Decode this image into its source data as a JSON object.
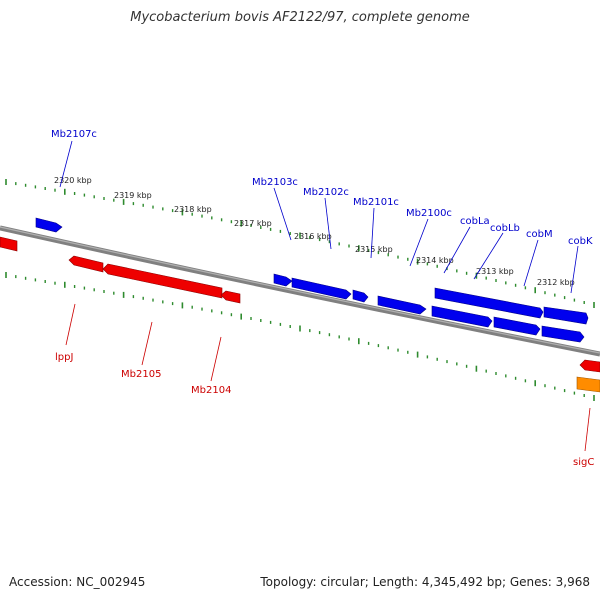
{
  "title": "Mycobacterium bovis AF2122/97, complete genome",
  "footer": {
    "accession": "Accession: NC_002945",
    "stats": "Topology: circular; Length: 4,345,492 bp; Genes: 3,968"
  },
  "colors": {
    "backbone": "#808080",
    "ticks": "#2e8b2e",
    "forward_strand": "#0000ee",
    "reverse_strand": "#ee0000",
    "rna": "#ff8c00",
    "label_blue": "#0000cc",
    "label_red": "#cc0000"
  },
  "scale_labels": [
    "2320 kbp",
    "2319 kbp",
    "2318 kbp",
    "2317 kbp",
    "2316 kbp",
    "2315 kbp",
    "2314 kbp",
    "2313 kbp",
    "2312 kbp"
  ],
  "upper_genes": [
    "Mb2107c",
    "Mb2103c",
    "Mb2102c",
    "Mb2101c",
    "Mb2100c",
    "cobLa",
    "cobLb",
    "cobM",
    "cobK"
  ],
  "lower_genes": [
    "lppJ",
    "Mb2105",
    "Mb2104",
    "sigC"
  ]
}
